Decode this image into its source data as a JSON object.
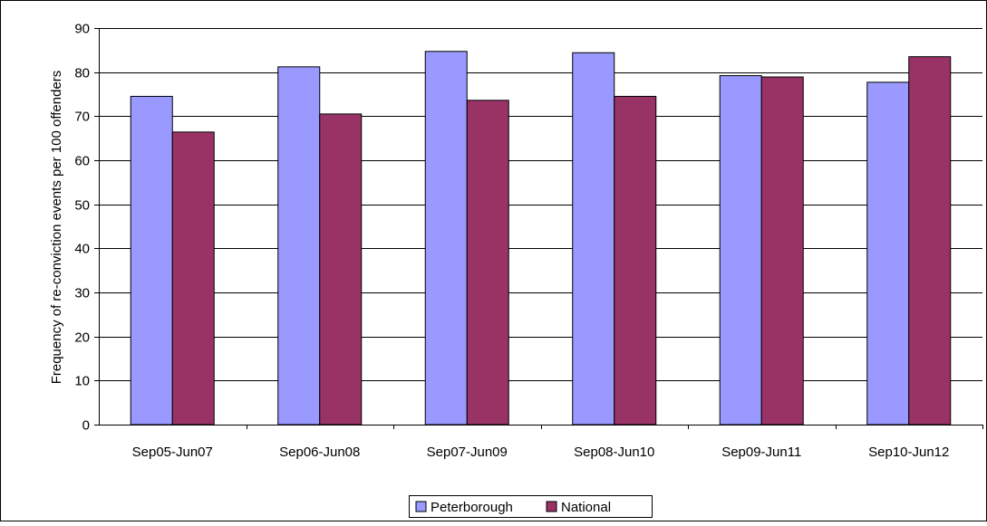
{
  "chart_data": {
    "type": "bar",
    "title": "",
    "xlabel": "",
    "ylabel": "Frequency of re-conviction events per 100 offenders",
    "ylim": [
      0,
      90
    ],
    "yticks": [
      0,
      10,
      20,
      30,
      40,
      50,
      60,
      70,
      80,
      90
    ],
    "grid": true,
    "legend_position": "bottom-center",
    "categories": [
      "Sep05-Jun07",
      "Sep06-Jun08",
      "Sep07-Jun09",
      "Sep08-Jun10",
      "Sep09-Jun11",
      "Sep10-Jun12"
    ],
    "series": [
      {
        "name": "Peterborough",
        "color": "#9999ff",
        "values": [
          74.5,
          81.2,
          84.7,
          84.4,
          79.2,
          77.7
        ]
      },
      {
        "name": "National",
        "color": "#993366",
        "values": [
          66.4,
          70.5,
          73.6,
          74.5,
          78.9,
          83.5
        ]
      }
    ]
  }
}
